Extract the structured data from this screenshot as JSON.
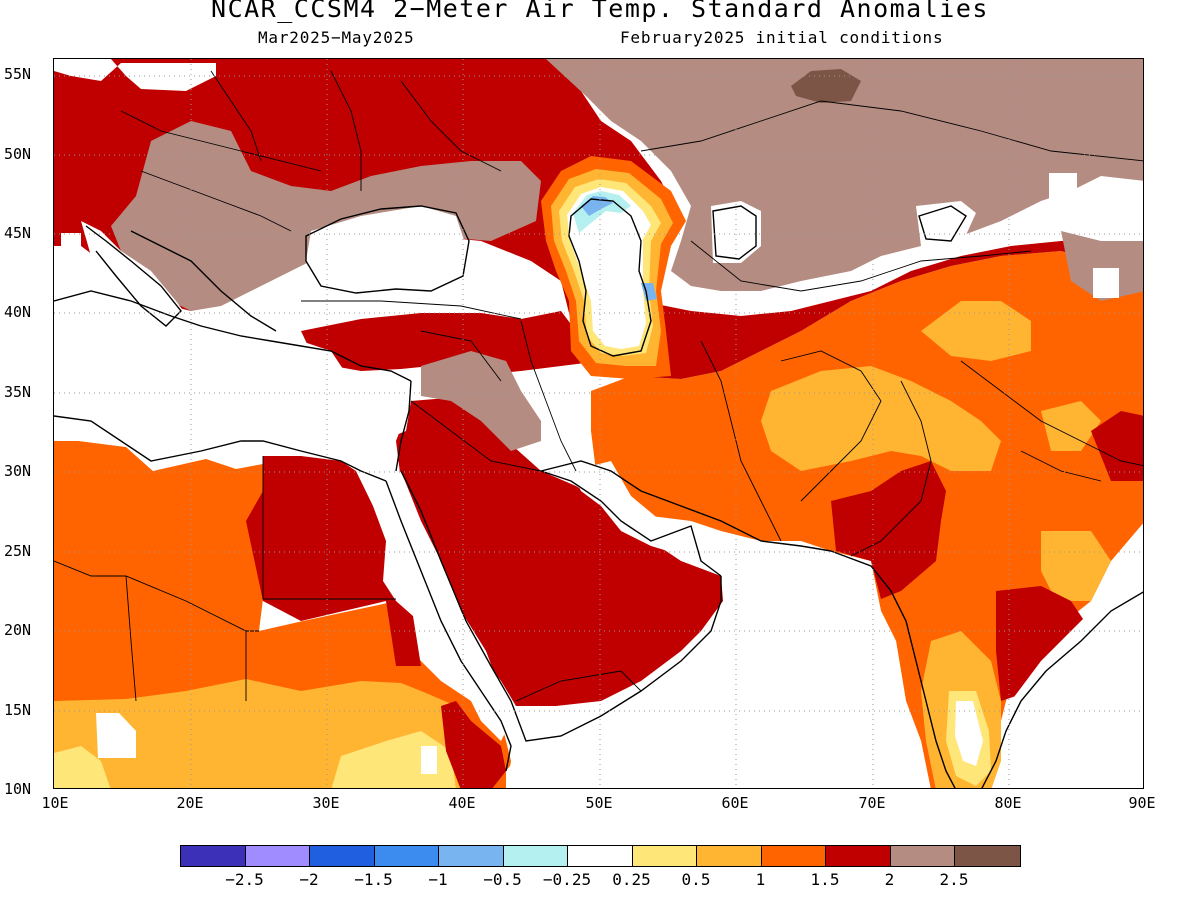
{
  "title": "NCAR_CCSM4 2−Meter Air Temp. Standard Anomalies",
  "subtitle_left": "Mar2025−May2025",
  "subtitle_right": "February2025 initial conditions",
  "lat_labels": [
    "55N",
    "50N",
    "45N",
    "40N",
    "35N",
    "30N",
    "25N",
    "20N",
    "15N",
    "10N"
  ],
  "lon_labels": [
    "10E",
    "20E",
    "30E",
    "40E",
    "50E",
    "60E",
    "70E",
    "80E",
    "90E"
  ],
  "colorbar": {
    "colors": [
      "#3c2fb8",
      "#a08cff",
      "#1f5fe0",
      "#3c8cf0",
      "#78b4f0",
      "#b4f0f0",
      "#ffffff",
      "#ffe678",
      "#ffb432",
      "#ff6400",
      "#c00000",
      "#b48c82",
      "#7d5546"
    ],
    "labels": [
      "−2.5",
      "−2",
      "−1.5",
      "−1",
      "−0.5",
      "−0.25",
      "0.25",
      "0.5",
      "1",
      "1.5",
      "2",
      "2.5"
    ]
  },
  "colors": {
    "anom_0_5": "#ffe678",
    "anom_1": "#ffb432",
    "anom_1_5": "#ff6400",
    "anom_2": "#c00000",
    "anom_2_5": "#b48c82",
    "anom_max": "#7d5546",
    "anom_neg_0_5": "#78b4f0",
    "anom_neg_0_25": "#b4f0f0",
    "gridline": "#999999",
    "coast": "#000000"
  }
}
